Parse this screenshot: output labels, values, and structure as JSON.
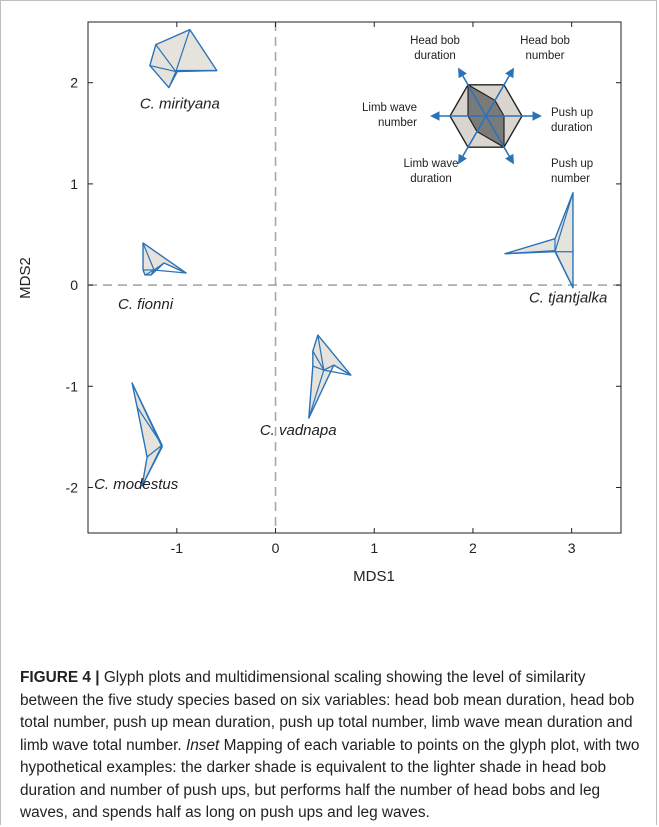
{
  "chart_data": {
    "type": "scatter",
    "title": "",
    "xlabel": "MDS1",
    "ylabel": "MDS2",
    "xlim": [
      -1.9,
      3.5
    ],
    "ylim": [
      -2.45,
      2.6
    ],
    "xticks": [
      -1,
      0,
      1,
      2,
      3
    ],
    "yticks": [
      2,
      1,
      0,
      -1,
      -2
    ],
    "grid": false,
    "reference_lines": {
      "x": 0,
      "y": 0
    },
    "points": [
      {
        "species": "C. mirityana",
        "x": -1.0,
        "y": 2.1
      },
      {
        "species": "C. fionni",
        "x": -1.15,
        "y": 0.1
      },
      {
        "species": "C. modestus",
        "x": -1.2,
        "y": -1.6
      },
      {
        "species": "C. vadnapa",
        "x": 0.55,
        "y": -0.85
      },
      {
        "species": "C. tjantjalka",
        "x": 2.75,
        "y": 0.3
      }
    ],
    "inset": {
      "axis_labels": [
        [
          "Head bob",
          "duration"
        ],
        [
          "Head bob",
          "number"
        ],
        [
          "Push up",
          "duration"
        ],
        [
          "Push up",
          "number"
        ],
        [
          "Limb wave",
          "duration"
        ],
        [
          "Limb wave",
          "number"
        ]
      ]
    },
    "colors": {
      "glyph_stroke": "#2a73b8",
      "glyph_fill": "#e6e3dd",
      "inset_dark": "#7a7a7a",
      "inset_light": "#dad6cf",
      "inset_arrow": "#2a73b8",
      "refline": "#a8a8a8"
    }
  },
  "caption": {
    "label": "FIGURE 4 |",
    "text1": " Glyph plots and multidimensional scaling showing the level of similarity between the five study species based on six variables: head bob mean duration, head bob total number, push up mean duration, push up total number, limb wave mean duration and limb wave total number. ",
    "inset_word": "Inset",
    "text2": " Mapping of each variable to points on the glyph plot, with two hypothetical examples: the darker shade is equivalent to the lighter shade in head bob duration and number of push ups, but performs half the number of head bobs and leg waves, and spends half as long on push ups and leg waves."
  }
}
